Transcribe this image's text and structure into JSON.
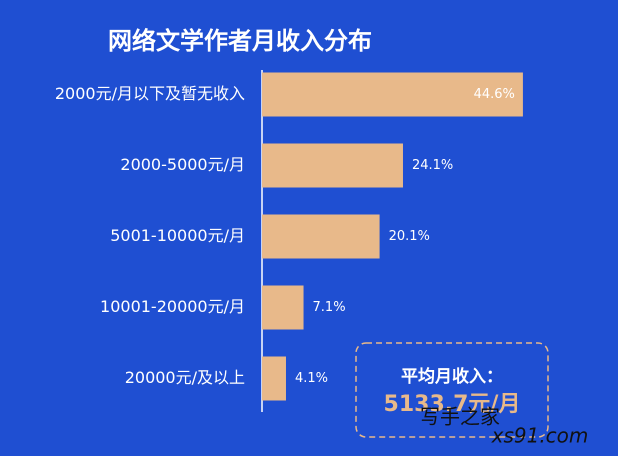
{
  "chart_data": {
    "type": "barh",
    "title": "网络文学作者月收入分布",
    "categories": [
      "2000元/月以下及暂无收入",
      "2000-5000元/月",
      "5001-10000元/月",
      "10001-20000元/月",
      "20000元/及以上"
    ],
    "values": [
      44.6,
      24.1,
      20.1,
      7.1,
      4.1
    ],
    "value_labels": [
      "44.6%",
      "24.1%",
      "20.1%",
      "7.1%",
      "4.1%"
    ],
    "color": "#e8b98a",
    "annotation": {
      "label": "平均月收入：",
      "value": "5133.7元/月"
    },
    "watermark": [
      "写手之家",
      "xs91.com"
    ]
  }
}
